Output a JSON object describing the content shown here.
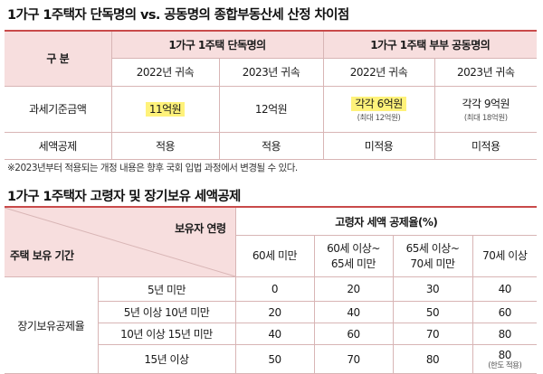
{
  "section1": {
    "title": "1가구 1주택자 단독명의 vs. 공동명의 종합부동산세 산정 차이점",
    "header": {
      "category": "구 분",
      "group_single": "1가구 1주택 단독명의",
      "group_joint": "1가구 1주택 부부 공동명의",
      "years": [
        "2022년 귀속",
        "2023년 귀속",
        "2022년 귀속",
        "2023년 귀속"
      ]
    },
    "rows": [
      {
        "label": "과세기준금액",
        "values": [
          "11억원",
          "12억원",
          "각각 6억원",
          "각각 9억원"
        ],
        "subs": [
          "",
          "",
          "(최대 12억원)",
          "(최대 18억원)"
        ]
      },
      {
        "label": "세액공제",
        "values": [
          "적용",
          "적용",
          "미적용",
          "미적용"
        ]
      }
    ],
    "note": "※2023년부터 적용되는 개정 내용은 향후 국회 입법 과정에서 변경될 수 있다.",
    "highlight_color": "#fff27a"
  },
  "section2": {
    "title": "1가구 1주택자 고령자 및 장기보유 세액공제",
    "corner_top": "보유자 연령",
    "corner_bottom": "주택 보유 기간",
    "rate_header": "고령자 세액 공제율(%)",
    "age_cols": [
      [
        "60세 미만"
      ],
      [
        "60세 이상~",
        "65세 미만"
      ],
      [
        "65세 이상~",
        "70세 미만"
      ],
      [
        "70세 이상"
      ]
    ],
    "row_group_label": "장기보유공제율",
    "rows": [
      {
        "period": "5년 미만",
        "values": [
          "0",
          "20",
          "30",
          "40"
        ]
      },
      {
        "period": "5년 이상 10년 미만",
        "values": [
          "20",
          "40",
          "50",
          "60"
        ]
      },
      {
        "period": "10년 이상 15년 미만",
        "values": [
          "40",
          "60",
          "70",
          "80"
        ]
      },
      {
        "period": "15년 이상",
        "values": [
          "50",
          "70",
          "80",
          "80"
        ],
        "last_note": "(한도 적용)"
      }
    ]
  },
  "colors": {
    "accent_line": "#c94a4a",
    "header_bg": "#f7dede"
  }
}
